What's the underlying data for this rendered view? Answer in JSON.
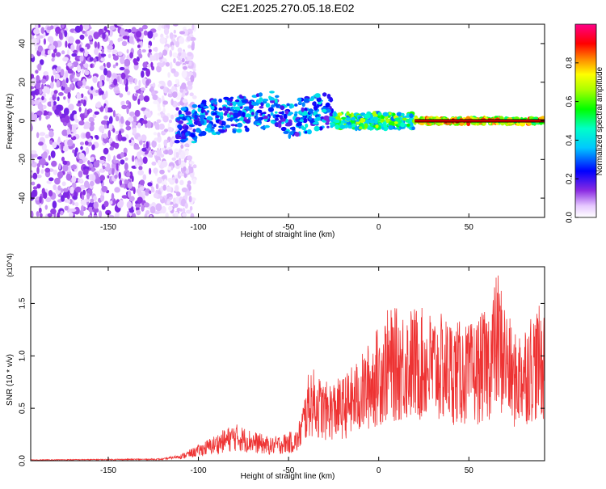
{
  "title": "C2E1.2025.270.05.18.E02",
  "chart_data": [
    {
      "type": "heatmap",
      "xlabel": "Height of straight line (km)",
      "ylabel": "Frequency (Hz)",
      "xlim": [
        -193,
        92
      ],
      "ylim": [
        -50,
        50
      ],
      "x_ticks": [
        -150,
        -100,
        -50,
        0,
        50
      ],
      "y_ticks": [
        -40,
        -20,
        0,
        20,
        40
      ],
      "colorbar": {
        "label": "Normalized spectral amplitude",
        "range": [
          0,
          1
        ],
        "ticks": [
          0.0,
          0.2,
          0.4,
          0.6,
          0.8
        ],
        "colormap": "rainbow (white-violet-blue-cyan-green-yellow-red-magenta)"
      },
      "features": {
        "noise_region_x": [
          -193,
          -110
        ],
        "ridge_center_frequency_hz": 0,
        "ridge_start_x": -112,
        "ridge_peak_amplitude": 0.9
      }
    },
    {
      "type": "line",
      "xlabel": "Height of straight line (km)",
      "ylabel": "SNR (10 * v/v)",
      "y_multiplier": "(x10^4)",
      "xlim": [
        -193,
        92
      ],
      "ylim": [
        0,
        1.85
      ],
      "x_ticks": [
        -150,
        -100,
        -50,
        0,
        50
      ],
      "y_ticks": [
        0.0,
        0.5,
        1.0,
        1.5
      ],
      "series": [
        {
          "color": "#ee3333",
          "envelope_points": [
            {
              "x": -193,
              "y": 0.01
            },
            {
              "x": -120,
              "y": 0.02
            },
            {
              "x": -110,
              "y": 0.06
            },
            {
              "x": -100,
              "y": 0.15
            },
            {
              "x": -80,
              "y": 0.36
            },
            {
              "x": -60,
              "y": 0.22
            },
            {
              "x": -45,
              "y": 0.3
            },
            {
              "x": -38,
              "y": 0.92
            },
            {
              "x": -30,
              "y": 0.75
            },
            {
              "x": -20,
              "y": 0.8
            },
            {
              "x": -10,
              "y": 1.0
            },
            {
              "x": 5,
              "y": 1.45
            },
            {
              "x": 20,
              "y": 1.48
            },
            {
              "x": 35,
              "y": 1.4
            },
            {
              "x": 50,
              "y": 1.3
            },
            {
              "x": 60,
              "y": 1.45
            },
            {
              "x": 66,
              "y": 1.83
            },
            {
              "x": 75,
              "y": 1.2
            },
            {
              "x": 85,
              "y": 1.45
            },
            {
              "x": 92,
              "y": 1.5
            }
          ]
        }
      ]
    }
  ]
}
